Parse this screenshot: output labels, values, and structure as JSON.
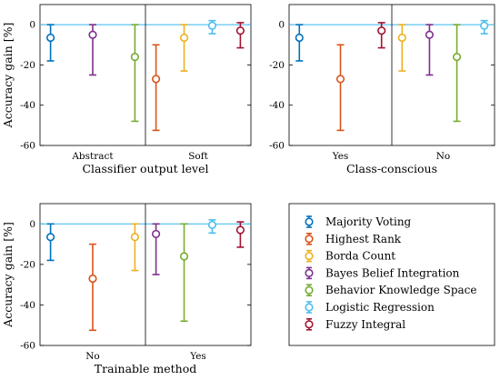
{
  "chart_data": {
    "type": "errorbar",
    "ylabel": "Accuracy gain [%]",
    "ylim": [
      -60,
      10
    ],
    "yticks": [
      0,
      -20,
      -40,
      -60
    ],
    "reference_line": 0,
    "grid": false,
    "legend_placement": "bottom-right panel",
    "methods": [
      {
        "name": "Majority Voting",
        "color": "#0072BD",
        "mean": -6.5,
        "low": -18,
        "high": 0
      },
      {
        "name": "Highest Rank",
        "color": "#D95319",
        "mean": -27,
        "low": -52.5,
        "high": -10
      },
      {
        "name": "Borda Count",
        "color": "#EDB120",
        "mean": -6.5,
        "low": -23,
        "high": 0
      },
      {
        "name": "Bayes Belief Integration",
        "color": "#7E2F8E",
        "mean": -5,
        "low": -25,
        "high": 0
      },
      {
        "name": "Behavior Knowledge Space",
        "color": "#77AC30",
        "mean": -16,
        "low": -48,
        "high": 0
      },
      {
        "name": "Logistic Regression",
        "color": "#4DBEEE",
        "mean": -0.5,
        "low": -4.5,
        "high": 2
      },
      {
        "name": "Fuzzy Integral",
        "color": "#A2142F",
        "mean": -3,
        "low": -11.5,
        "high": 1
      }
    ],
    "panels": [
      {
        "xlabel": "Classifier output level",
        "groups": [
          {
            "label": "Abstract",
            "members": [
              0,
              3,
              4
            ]
          },
          {
            "label": "Soft",
            "members": [
              1,
              2,
              5,
              6
            ]
          }
        ]
      },
      {
        "xlabel": "Class-conscious",
        "groups": [
          {
            "label": "Yes",
            "members": [
              0,
              1,
              6
            ]
          },
          {
            "label": "No",
            "members": [
              2,
              3,
              4,
              5
            ]
          }
        ]
      },
      {
        "xlabel": "Trainable method",
        "groups": [
          {
            "label": "No",
            "members": [
              0,
              1,
              2
            ]
          },
          {
            "label": "Yes",
            "members": [
              3,
              4,
              5,
              6
            ]
          }
        ]
      }
    ]
  }
}
